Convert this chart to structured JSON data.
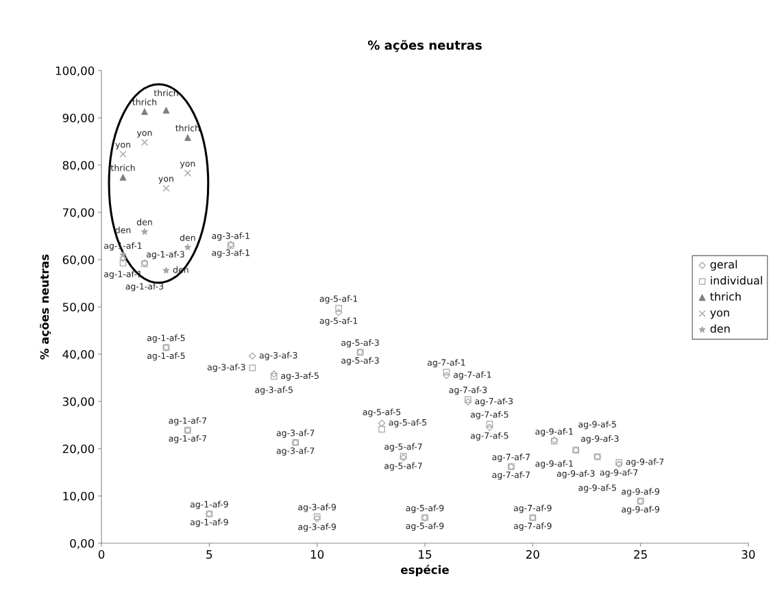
{
  "chart_data": {
    "type": "scatter",
    "title": "% ações neutras",
    "xlabel": "espécie",
    "ylabel": "% ações neutras",
    "xlim": [
      0,
      30
    ],
    "xticks": [
      0,
      5,
      10,
      15,
      20,
      25,
      30
    ],
    "ylim": [
      0,
      100
    ],
    "yticks": [
      {
        "value": 0,
        "label": "0,00"
      },
      {
        "value": 10,
        "label": "10,00"
      },
      {
        "value": 20,
        "label": "20,00"
      },
      {
        "value": 30,
        "label": "30,00"
      },
      {
        "value": 40,
        "label": "40,00"
      },
      {
        "value": 50,
        "label": "50,00"
      },
      {
        "value": 60,
        "label": "60,00"
      },
      {
        "value": 70,
        "label": "70,00"
      },
      {
        "value": 80,
        "label": "80,00"
      },
      {
        "value": 90,
        "label": "90,00"
      },
      {
        "value": 100,
        "label": "100,00"
      }
    ],
    "grid": false,
    "legend": "right",
    "series": [
      {
        "name": "geral",
        "color": "#a6a6a6",
        "marker": "diamond",
        "x": [
          1,
          2,
          3,
          4,
          5,
          6,
          7,
          8,
          9,
          10,
          11,
          12,
          13,
          14,
          15,
          16,
          17,
          18,
          19,
          20,
          21,
          22,
          23,
          24,
          25
        ],
        "values": [
          60.3,
          59.3,
          41.4,
          23.9,
          6.2,
          63.2,
          39.6,
          35.8,
          21.3,
          5.2,
          48.8,
          40.4,
          25.4,
          18.1,
          5.4,
          35.5,
          29.9,
          24.5,
          16.2,
          5.4,
          21.8,
          19.7,
          18.3,
          16.7,
          8.9
        ],
        "value_labels": [
          "ag-1-af-1",
          "ag-1-af-3",
          "ag-1-af-5",
          "ag-1-af-7",
          "ag-1-af-9",
          "ag-3-af-1",
          "ag-3-af-3",
          "ag-3-af-5",
          "ag-3-af-7",
          "ag-3-af-9",
          "ag-5-af-1",
          "ag-5-af-3",
          "ag-5-af-5",
          "ag-5-af-7",
          "ag-5-af-9",
          "ag-7-af-1",
          "ag-7-af-3",
          "ag-7-af-5",
          "ag-7-af-7",
          "ag-7-af-9",
          "ag-9-af-1",
          "ag-9-af-3",
          "ag-9-af-5",
          "ag-9-af-7",
          "ag-9-af-9"
        ]
      },
      {
        "name": "individual",
        "color": "#a6a6a6",
        "marker": "square",
        "x": [
          1,
          2,
          3,
          4,
          5,
          6,
          7,
          8,
          9,
          10,
          11,
          12,
          13,
          14,
          15,
          16,
          17,
          18,
          19,
          20,
          21,
          22,
          23,
          24,
          25
        ],
        "values": [
          59.3,
          59.1,
          41.4,
          23.9,
          6.2,
          63.0,
          37.1,
          35.3,
          21.3,
          5.6,
          49.7,
          40.4,
          24.1,
          18.4,
          5.4,
          36.2,
          30.4,
          25.2,
          16.2,
          5.4,
          21.6,
          19.7,
          18.3,
          17.1,
          8.9
        ],
        "value_labels": [
          "ag-1-af-1",
          "ag-1-af-3",
          "ag-1-af-5",
          "ag-1-af-7",
          "ag-1-af-9",
          "ag-3-af-1",
          "ag-3-af-3",
          "ag-3-af-5",
          "ag-3-af-7",
          "ag-3-af-9",
          "ag-5-af-1",
          "ag-5-af-3",
          "ag-5-af-5",
          "ag-5-af-7",
          "ag-5-af-9",
          "ag-7-af-1",
          "ag-7-af-3",
          "ag-7-af-5",
          "ag-7-af-7",
          "ag-7-af-9",
          "ag-9-af-1",
          "ag-9-af-3",
          "ag-9-af-5",
          "ag-9-af-7",
          "ag-9-af-9"
        ]
      },
      {
        "name": "thrich",
        "color": "#808080",
        "marker": "triangle",
        "x": [
          1,
          2,
          3,
          4
        ],
        "values": [
          77.4,
          91.3,
          91.6,
          85.8
        ],
        "value_labels": [
          "thrich",
          "thrich",
          "thrich",
          "thrich"
        ]
      },
      {
        "name": "yon",
        "color": "#a6a6a6",
        "marker": "cross",
        "x": [
          1,
          2,
          3,
          4
        ],
        "values": [
          82.3,
          84.8,
          75.1,
          78.3
        ],
        "value_labels": [
          "yon",
          "yon",
          "yon",
          "yon"
        ]
      },
      {
        "name": "den",
        "color": "#a6a6a6",
        "marker": "star",
        "x": [
          1,
          2,
          3,
          4
        ],
        "values": [
          61.0,
          65.9,
          57.7,
          62.6
        ],
        "value_labels": [
          "den",
          "den",
          "den",
          "den"
        ]
      }
    ]
  }
}
